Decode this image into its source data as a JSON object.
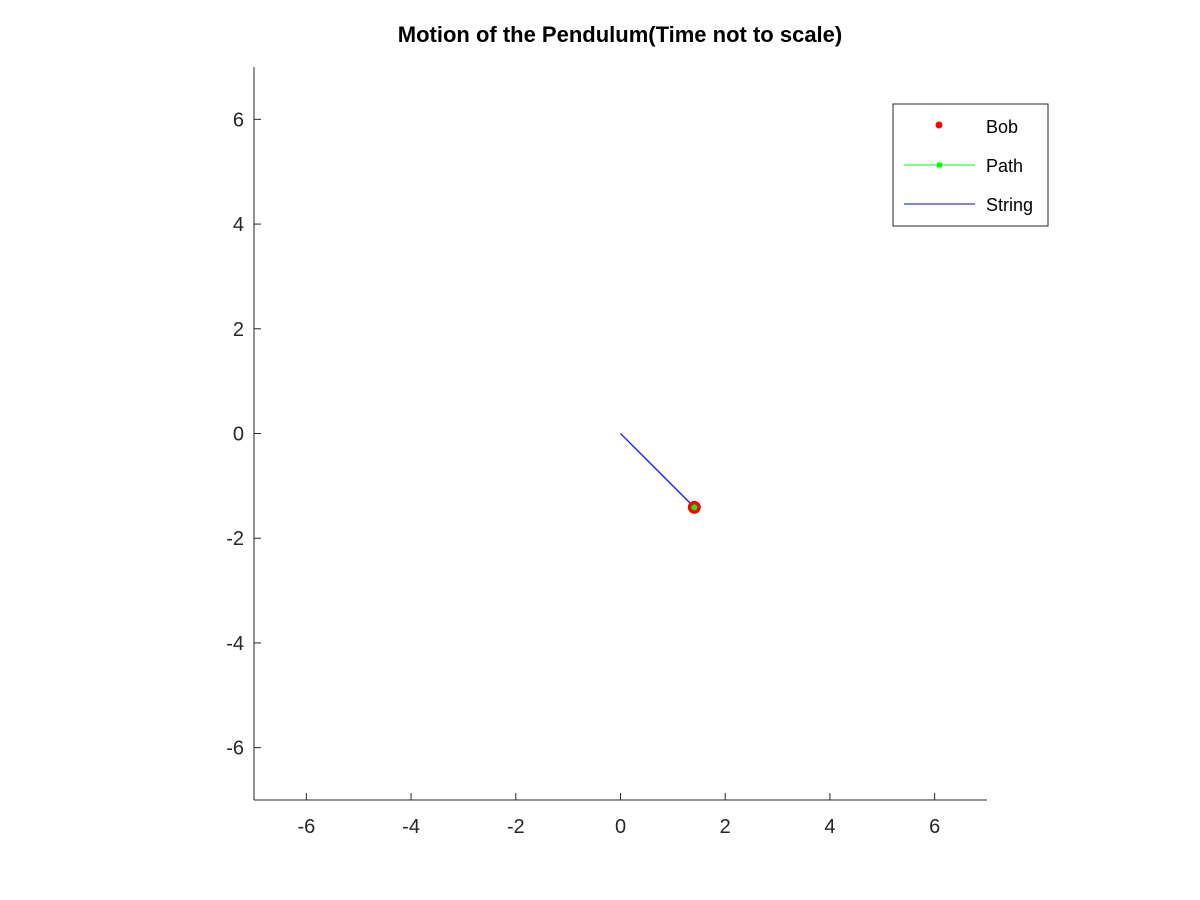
{
  "chart_data": {
    "type": "line",
    "title": "Motion of the Pendulum(Time not to scale)",
    "xlabel": "",
    "ylabel": "",
    "xlim": [
      -7,
      7
    ],
    "ylim": [
      -7,
      7
    ],
    "xticks": [
      -6,
      -4,
      -2,
      0,
      2,
      4,
      6
    ],
    "yticks": [
      -6,
      -4,
      -2,
      0,
      2,
      4,
      6
    ],
    "grid": false,
    "legend_position": "top-right",
    "series": [
      {
        "name": "Bob",
        "kind": "marker",
        "color": "#ff0000",
        "points": [
          {
            "x": 1.41,
            "y": -1.41
          }
        ]
      },
      {
        "name": "Path",
        "kind": "line-marker",
        "color": "#00ff00",
        "points": [
          {
            "x": 1.41,
            "y": -1.41
          }
        ]
      },
      {
        "name": "String",
        "kind": "line",
        "color": "#0000ff",
        "points": [
          {
            "x": 0,
            "y": 0
          },
          {
            "x": 1.41,
            "y": -1.41
          }
        ]
      }
    ]
  }
}
